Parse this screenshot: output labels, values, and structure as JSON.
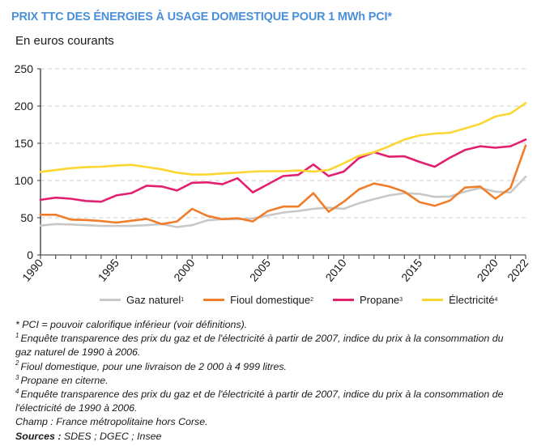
{
  "header": {
    "title": "PRIX TTC DES ÉNERGIES À USAGE DOMESTIQUE POUR 1 MWh PCI*",
    "subtitle": "En euros courants"
  },
  "chart_data": {
    "type": "line",
    "title": "PRIX TTC DES ÉNERGIES À USAGE DOMESTIQUE POUR 1 MWh PCI*",
    "ylabel": "En euros courants",
    "xlabel": "",
    "ylim": [
      0,
      250
    ],
    "yticks": [
      0,
      50,
      100,
      150,
      200,
      250
    ],
    "xlim": [
      1990,
      2022
    ],
    "xtick_labels": [
      "1990",
      "1995",
      "2000",
      "2005",
      "2010",
      "2015",
      "2020",
      "2022"
    ],
    "grid": "horizontal-dashed",
    "legend_position": "bottom",
    "x": [
      1990,
      1991,
      1992,
      1993,
      1994,
      1995,
      1996,
      1997,
      1998,
      1999,
      2000,
      2001,
      2002,
      2003,
      2004,
      2005,
      2006,
      2007,
      2008,
      2009,
      2010,
      2011,
      2012,
      2013,
      2014,
      2015,
      2016,
      2017,
      2018,
      2019,
      2020,
      2021,
      2022
    ],
    "series": [
      {
        "name": "Gaz naturel",
        "footnote": "1",
        "color": "#c8c8c8",
        "values": [
          39.5,
          41.5,
          41,
          40,
          39,
          39,
          39,
          40,
          41.5,
          37.5,
          40,
          46.5,
          48,
          48,
          49,
          53,
          57,
          59,
          62,
          63.5,
          62,
          69.5,
          75,
          80,
          83,
          82,
          78,
          78.5,
          85,
          90,
          85,
          84,
          105
        ]
      },
      {
        "name": "Fioul domestique",
        "footnote": "2",
        "color": "#f07d2a",
        "values": [
          54,
          54,
          47.5,
          47,
          45.5,
          43.5,
          46,
          48.5,
          41.5,
          45,
          62,
          52.5,
          48,
          49.5,
          45,
          59,
          65,
          65,
          83,
          58,
          71.5,
          88,
          96,
          92,
          85,
          71,
          66,
          73,
          90.5,
          92,
          75.5,
          90,
          147
        ]
      },
      {
        "name": "Propane",
        "footnote": "3",
        "color": "#e2206f",
        "values": [
          74,
          77,
          75.5,
          72.5,
          71.5,
          80,
          83,
          93,
          92,
          86.5,
          97,
          97.5,
          95,
          103,
          84,
          95,
          106,
          107.5,
          121.5,
          106,
          112,
          130,
          138,
          132,
          132.5,
          125,
          118.5,
          130.5,
          141,
          146,
          144,
          146,
          155
        ]
      },
      {
        "name": "Électricité",
        "footnote": "4",
        "color": "#fcd733",
        "values": [
          111.5,
          114,
          116.5,
          118,
          118.5,
          120,
          121,
          118,
          115,
          110.5,
          108,
          108,
          109.5,
          110.5,
          112,
          112.5,
          112.5,
          113.5,
          112,
          114,
          123,
          133,
          138,
          146,
          155,
          160.5,
          163,
          164,
          170,
          176,
          186,
          190,
          204
        ]
      }
    ]
  },
  "legend": {
    "items": [
      {
        "label": "Gaz naturel",
        "sup": "1"
      },
      {
        "label": "Fioul domestique",
        "sup": "2"
      },
      {
        "label": "Propane",
        "sup": "3"
      },
      {
        "label": "Électricité",
        "sup": "4"
      }
    ]
  },
  "notes": {
    "pci": "* PCI = pouvoir calorifique inférieur (voir définitions).",
    "n1_mark": "1",
    "n1_line1": "Enquête transparence des prix du gaz et de l'électricité à partir de 2007, indice du prix à la consommation du",
    "n1_line2": "gaz naturel de 1990 à 2006.",
    "n2_mark": "2",
    "n2": "Fioul domestique, pour une livraison de 2 000 à 4 999 litres.",
    "n3_mark": "3",
    "n3": "Propane en citerne.",
    "n4_mark": "4",
    "n4_line1": "Enquête transparence des prix du gaz et de l'électricité à partir de 2007, indice du prix à la consommation de",
    "n4_line2": "l'électricité de 1990 à 2006.",
    "champ": "Champ : France métropolitaine hors Corse.",
    "sources_label": "Sources :",
    "sources": " SDES ; DGEC ; Insee"
  }
}
